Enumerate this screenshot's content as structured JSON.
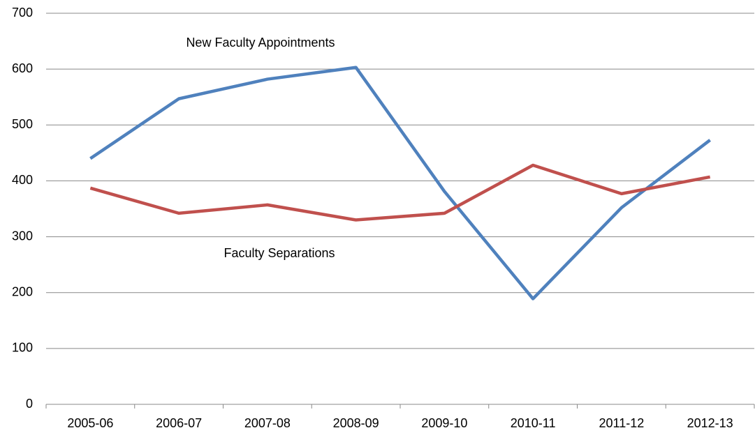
{
  "chart_data": {
    "type": "line",
    "categories": [
      "2005-06",
      "2006-07",
      "2007-08",
      "2008-09",
      "2009-10",
      "2010-11",
      "2011-12",
      "2012-13"
    ],
    "series": [
      {
        "name": "New Faculty Appointments",
        "color": "#4f81bd",
        "values": [
          440,
          547,
          582,
          603,
          381,
          189,
          352,
          473
        ]
      },
      {
        "name": "Faculty Separations",
        "color": "#c0504d",
        "values": [
          387,
          342,
          357,
          330,
          342,
          428,
          377,
          407
        ]
      }
    ],
    "ylim": [
      0,
      700
    ],
    "yticks": [
      0,
      100,
      200,
      300,
      400,
      500,
      600,
      700
    ],
    "grid": true
  }
}
